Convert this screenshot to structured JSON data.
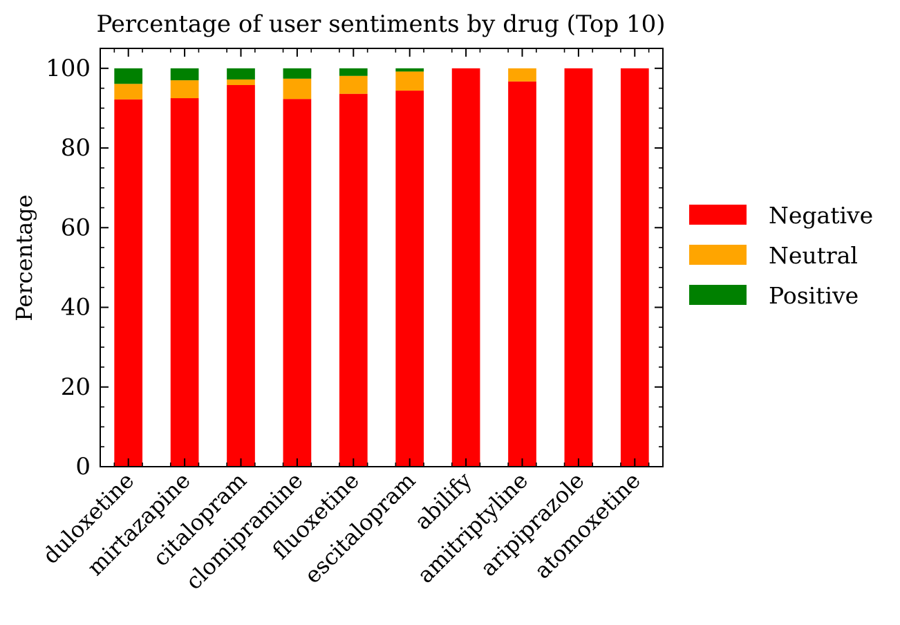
{
  "chart_data": {
    "type": "bar",
    "stacked": true,
    "title": "Percentage of user sentiments by drug (Top 10)",
    "xlabel": "",
    "ylabel": "Percentage",
    "ylim": [
      0,
      105
    ],
    "yticks": [
      0,
      20,
      40,
      60,
      80,
      100
    ],
    "grid": false,
    "legend_position": "right",
    "categories": [
      "duloxetine",
      "mirtazapine",
      "citalopram",
      "clomipramine",
      "fluoxetine",
      "escitalopram",
      "abilify",
      "amitriptyline",
      "aripiprazole",
      "atomoxetine"
    ],
    "series": [
      {
        "name": "Negative",
        "color": "#ff0000",
        "values": [
          92.2,
          92.5,
          95.8,
          92.3,
          93.6,
          94.4,
          100.0,
          96.7,
          100.0,
          100.0
        ]
      },
      {
        "name": "Neutral",
        "color": "#ffa500",
        "values": [
          3.9,
          4.5,
          1.4,
          5.1,
          4.5,
          4.8,
          0.0,
          3.3,
          0.0,
          0.0
        ]
      },
      {
        "name": "Positive",
        "color": "#008000",
        "values": [
          3.9,
          3.0,
          2.8,
          2.6,
          1.9,
          0.8,
          0.0,
          0.0,
          0.0,
          0.0
        ]
      }
    ]
  }
}
